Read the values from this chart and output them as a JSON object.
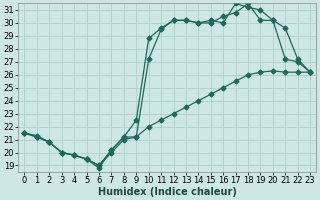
{
  "xlabel": "Humidex (Indice chaleur)",
  "xlim": [
    -0.5,
    23.5
  ],
  "ylim": [
    18.5,
    31.5
  ],
  "xticks": [
    0,
    1,
    2,
    3,
    4,
    5,
    6,
    7,
    8,
    9,
    10,
    11,
    12,
    13,
    14,
    15,
    16,
    17,
    18,
    19,
    20,
    21,
    22,
    23
  ],
  "yticks": [
    19,
    20,
    21,
    22,
    23,
    24,
    25,
    26,
    27,
    28,
    29,
    30,
    31
  ],
  "background_color": "#cde8e4",
  "grid_color": "#b0d0cc",
  "line_color": "#1a6b5a",
  "line1_x": [
    0,
    1,
    2,
    3,
    4,
    5,
    6,
    7,
    8,
    9,
    10,
    11,
    12,
    13,
    14,
    15,
    16,
    17,
    18,
    19,
    20,
    21,
    22,
    23
  ],
  "line1_y": [
    21.5,
    21.3,
    20.8,
    20.0,
    19.8,
    19.5,
    18.8,
    20.2,
    21.2,
    22.5,
    28.8,
    29.6,
    30.2,
    30.2,
    30.0,
    30.2,
    30.0,
    31.5,
    31.2,
    31.0,
    30.2,
    27.2,
    27.0,
    26.2
  ],
  "line2_x": [
    0,
    1,
    2,
    3,
    4,
    5,
    6,
    7,
    8,
    9,
    10,
    11,
    12,
    13,
    14,
    15,
    16,
    17,
    18,
    19,
    20,
    21,
    22,
    23
  ],
  "line2_y": [
    21.5,
    21.2,
    20.8,
    20.0,
    19.8,
    19.5,
    19.0,
    20.2,
    21.2,
    21.2,
    27.2,
    29.5,
    30.2,
    30.2,
    30.0,
    30.0,
    30.5,
    30.8,
    31.5,
    30.2,
    30.2,
    29.6,
    27.2,
    26.2
  ],
  "line3_x": [
    0,
    1,
    2,
    3,
    4,
    5,
    6,
    7,
    8,
    9,
    10,
    11,
    12,
    13,
    14,
    15,
    16,
    17,
    18,
    19,
    20,
    21,
    22,
    23
  ],
  "line3_y": [
    21.5,
    21.2,
    20.8,
    20.0,
    19.8,
    19.5,
    19.0,
    20.0,
    21.0,
    21.2,
    22.0,
    22.5,
    23.0,
    23.5,
    24.0,
    24.5,
    25.0,
    25.5,
    26.0,
    26.2,
    26.3,
    26.2,
    26.2,
    26.2
  ],
  "xlabel_fontsize": 7,
  "tick_fontsize": 6
}
